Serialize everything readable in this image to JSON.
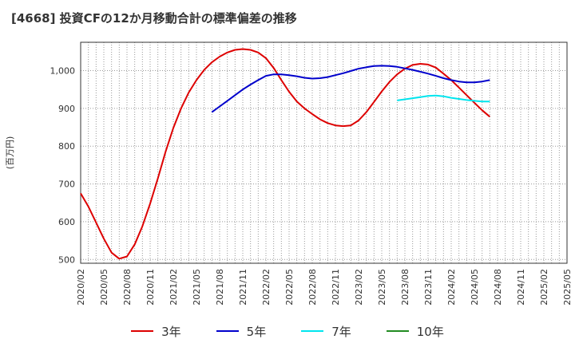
{
  "chart_data": {
    "type": "line",
    "title": "[4668]  投資CFの12か月移動合計の標準偏差の推移",
    "ylabel": "(百万円)",
    "xlabel": "",
    "ylim": [
      490,
      1075
    ],
    "yticks": [
      500,
      600,
      700,
      800,
      900,
      1000
    ],
    "ytick_labels": [
      "500",
      "600",
      "700",
      "800",
      "900",
      "1,000"
    ],
    "x_ticks": [
      "2020/02",
      "2020/05",
      "2020/08",
      "2020/11",
      "2021/02",
      "2021/05",
      "2021/08",
      "2021/11",
      "2022/02",
      "2022/05",
      "2022/08",
      "2022/11",
      "2023/02",
      "2023/05",
      "2023/08",
      "2023/11",
      "2024/02",
      "2024/05",
      "2024/08",
      "2024/11",
      "2025/02",
      "2025/05"
    ],
    "grid": true,
    "legend_position": "bottom",
    "series": [
      {
        "name": "3年",
        "color": "#dd0000",
        "points": [
          [
            "2020/02",
            675
          ],
          [
            "2020/03",
            640
          ],
          [
            "2020/04",
            598
          ],
          [
            "2020/05",
            555
          ],
          [
            "2020/06",
            518
          ],
          [
            "2020/07",
            502
          ],
          [
            "2020/08",
            508
          ],
          [
            "2020/09",
            540
          ],
          [
            "2020/10",
            588
          ],
          [
            "2020/11",
            648
          ],
          [
            "2020/12",
            715
          ],
          [
            "2021/01",
            785
          ],
          [
            "2021/02",
            848
          ],
          [
            "2021/03",
            900
          ],
          [
            "2021/04",
            942
          ],
          [
            "2021/05",
            975
          ],
          [
            "2021/06",
            1002
          ],
          [
            "2021/07",
            1022
          ],
          [
            "2021/08",
            1037
          ],
          [
            "2021/09",
            1048
          ],
          [
            "2021/10",
            1055
          ],
          [
            "2021/11",
            1057
          ],
          [
            "2021/12",
            1055
          ],
          [
            "2022/01",
            1048
          ],
          [
            "2022/02",
            1033
          ],
          [
            "2022/03",
            1007
          ],
          [
            "2022/04",
            975
          ],
          [
            "2022/05",
            944
          ],
          [
            "2022/06",
            918
          ],
          [
            "2022/07",
            900
          ],
          [
            "2022/08",
            885
          ],
          [
            "2022/09",
            871
          ],
          [
            "2022/10",
            861
          ],
          [
            "2022/11",
            855
          ],
          [
            "2022/12",
            853
          ],
          [
            "2023/01",
            855
          ],
          [
            "2023/02",
            868
          ],
          [
            "2023/03",
            890
          ],
          [
            "2023/04",
            917
          ],
          [
            "2023/05",
            945
          ],
          [
            "2023/06",
            970
          ],
          [
            "2023/07",
            990
          ],
          [
            "2023/08",
            1005
          ],
          [
            "2023/09",
            1015
          ],
          [
            "2023/10",
            1018
          ],
          [
            "2023/11",
            1016
          ],
          [
            "2023/12",
            1008
          ],
          [
            "2024/01",
            992
          ],
          [
            "2024/02",
            975
          ],
          [
            "2024/03",
            955
          ],
          [
            "2024/04",
            935
          ],
          [
            "2024/05",
            915
          ],
          [
            "2024/06",
            895
          ],
          [
            "2024/07",
            878
          ]
        ]
      },
      {
        "name": "5年",
        "color": "#0000cc",
        "points": [
          [
            "2021/07",
            890
          ],
          [
            "2021/08",
            905
          ],
          [
            "2021/09",
            920
          ],
          [
            "2021/10",
            935
          ],
          [
            "2021/11",
            950
          ],
          [
            "2021/12",
            963
          ],
          [
            "2022/01",
            975
          ],
          [
            "2022/02",
            986
          ],
          [
            "2022/03",
            990
          ],
          [
            "2022/04",
            990
          ],
          [
            "2022/05",
            988
          ],
          [
            "2022/06",
            985
          ],
          [
            "2022/07",
            981
          ],
          [
            "2022/08",
            979
          ],
          [
            "2022/09",
            980
          ],
          [
            "2022/10",
            983
          ],
          [
            "2022/11",
            988
          ],
          [
            "2022/12",
            993
          ],
          [
            "2023/01",
            999
          ],
          [
            "2023/02",
            1005
          ],
          [
            "2023/03",
            1009
          ],
          [
            "2023/04",
            1012
          ],
          [
            "2023/05",
            1013
          ],
          [
            "2023/06",
            1012
          ],
          [
            "2023/07",
            1010
          ],
          [
            "2023/08",
            1006
          ],
          [
            "2023/09",
            1002
          ],
          [
            "2023/10",
            997
          ],
          [
            "2023/11",
            992
          ],
          [
            "2023/12",
            986
          ],
          [
            "2024/01",
            980
          ],
          [
            "2024/02",
            975
          ],
          [
            "2024/03",
            971
          ],
          [
            "2024/04",
            969
          ],
          [
            "2024/05",
            969
          ],
          [
            "2024/06",
            971
          ],
          [
            "2024/07",
            975
          ]
        ]
      },
      {
        "name": "7年",
        "color": "#00e5ee",
        "points": [
          [
            "2023/07",
            921
          ],
          [
            "2023/08",
            924
          ],
          [
            "2023/09",
            927
          ],
          [
            "2023/10",
            930
          ],
          [
            "2023/11",
            933
          ],
          [
            "2023/12",
            934
          ],
          [
            "2024/01",
            932
          ],
          [
            "2024/02",
            928
          ],
          [
            "2024/03",
            925
          ],
          [
            "2024/04",
            922
          ],
          [
            "2024/05",
            920
          ],
          [
            "2024/06",
            918
          ],
          [
            "2024/07",
            918
          ]
        ]
      },
      {
        "name": "10年",
        "color": "#228b22",
        "points": []
      }
    ]
  }
}
